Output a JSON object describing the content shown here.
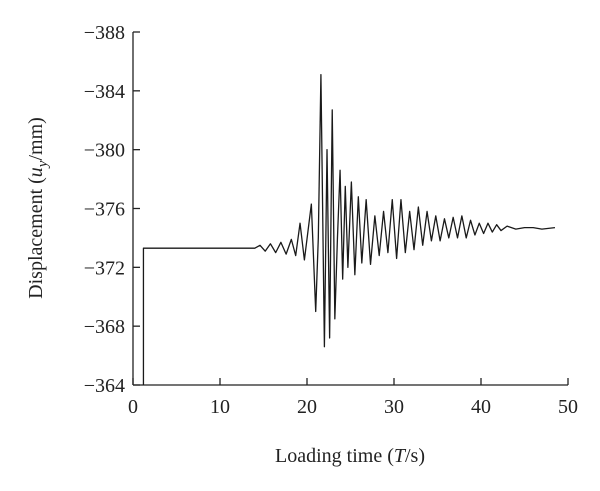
{
  "chart_data": {
    "type": "line",
    "xlabel": {
      "text": "Loading time (",
      "italic": "T",
      "rest": "/s)"
    },
    "ylabel": {
      "text": "Displacement (",
      "italic": "u",
      "sub": "y",
      "rest": "/mm)"
    },
    "xlim": [
      0,
      50
    ],
    "xticks": [
      0,
      10,
      20,
      30,
      40,
      50
    ],
    "ylim": [
      -364,
      -388
    ],
    "yticks": [
      {
        "value": -364,
        "label": "−364"
      },
      {
        "value": -368,
        "label": "−368"
      },
      {
        "value": -372,
        "label": "−372"
      },
      {
        "value": -376,
        "label": "−376"
      },
      {
        "value": -380,
        "label": "−380"
      },
      {
        "value": -384,
        "label": "−384"
      },
      {
        "value": -388,
        "label": "−388"
      }
    ],
    "grid": false,
    "series": [
      {
        "color": "#1a1a1a",
        "x": [
          1.2,
          1.2,
          5,
          10,
          14,
          14.6,
          15.2,
          15.8,
          16.4,
          17.0,
          17.6,
          18.2,
          18.7,
          19.2,
          19.7,
          20.5,
          21.0,
          21.3,
          21.6,
          22.0,
          22.3,
          22.6,
          22.9,
          23.2,
          23.5,
          23.8,
          24.1,
          24.4,
          24.7,
          25.1,
          25.5,
          25.9,
          26.3,
          26.8,
          27.3,
          27.8,
          28.3,
          28.8,
          29.3,
          29.8,
          30.3,
          30.8,
          31.3,
          31.8,
          32.3,
          32.8,
          33.3,
          33.8,
          34.3,
          34.8,
          35.3,
          35.8,
          36.3,
          36.8,
          37.3,
          37.8,
          38.3,
          38.8,
          39.3,
          39.8,
          40.3,
          40.8,
          41.3,
          41.8,
          42.3,
          43,
          44,
          45,
          46,
          47,
          48.5
        ],
        "values": [
          -364,
          -373.3,
          -373.3,
          -373.3,
          -373.3,
          -373.5,
          -373.1,
          -373.6,
          -373.0,
          -373.7,
          -372.9,
          -373.9,
          -372.8,
          -375.0,
          -372.5,
          -376.3,
          -369.0,
          -374,
          -385.1,
          -366.6,
          -380.0,
          -367.2,
          -382.7,
          -368.5,
          -374,
          -378.6,
          -371.2,
          -377.5,
          -372.0,
          -377.8,
          -371.5,
          -376.8,
          -372.3,
          -376.6,
          -372.2,
          -375.5,
          -372.8,
          -375.8,
          -373.0,
          -376.6,
          -372.6,
          -376.6,
          -373.0,
          -375.8,
          -373.2,
          -376.1,
          -373.5,
          -375.8,
          -373.8,
          -375.5,
          -373.8,
          -375.3,
          -374.0,
          -375.4,
          -374.0,
          -375.5,
          -374.0,
          -375.2,
          -374.2,
          -375.0,
          -374.3,
          -375.0,
          -374.4,
          -374.9,
          -374.5,
          -374.8,
          -374.6,
          -374.7,
          -374.7,
          -374.6,
          -374.7
        ]
      }
    ]
  }
}
